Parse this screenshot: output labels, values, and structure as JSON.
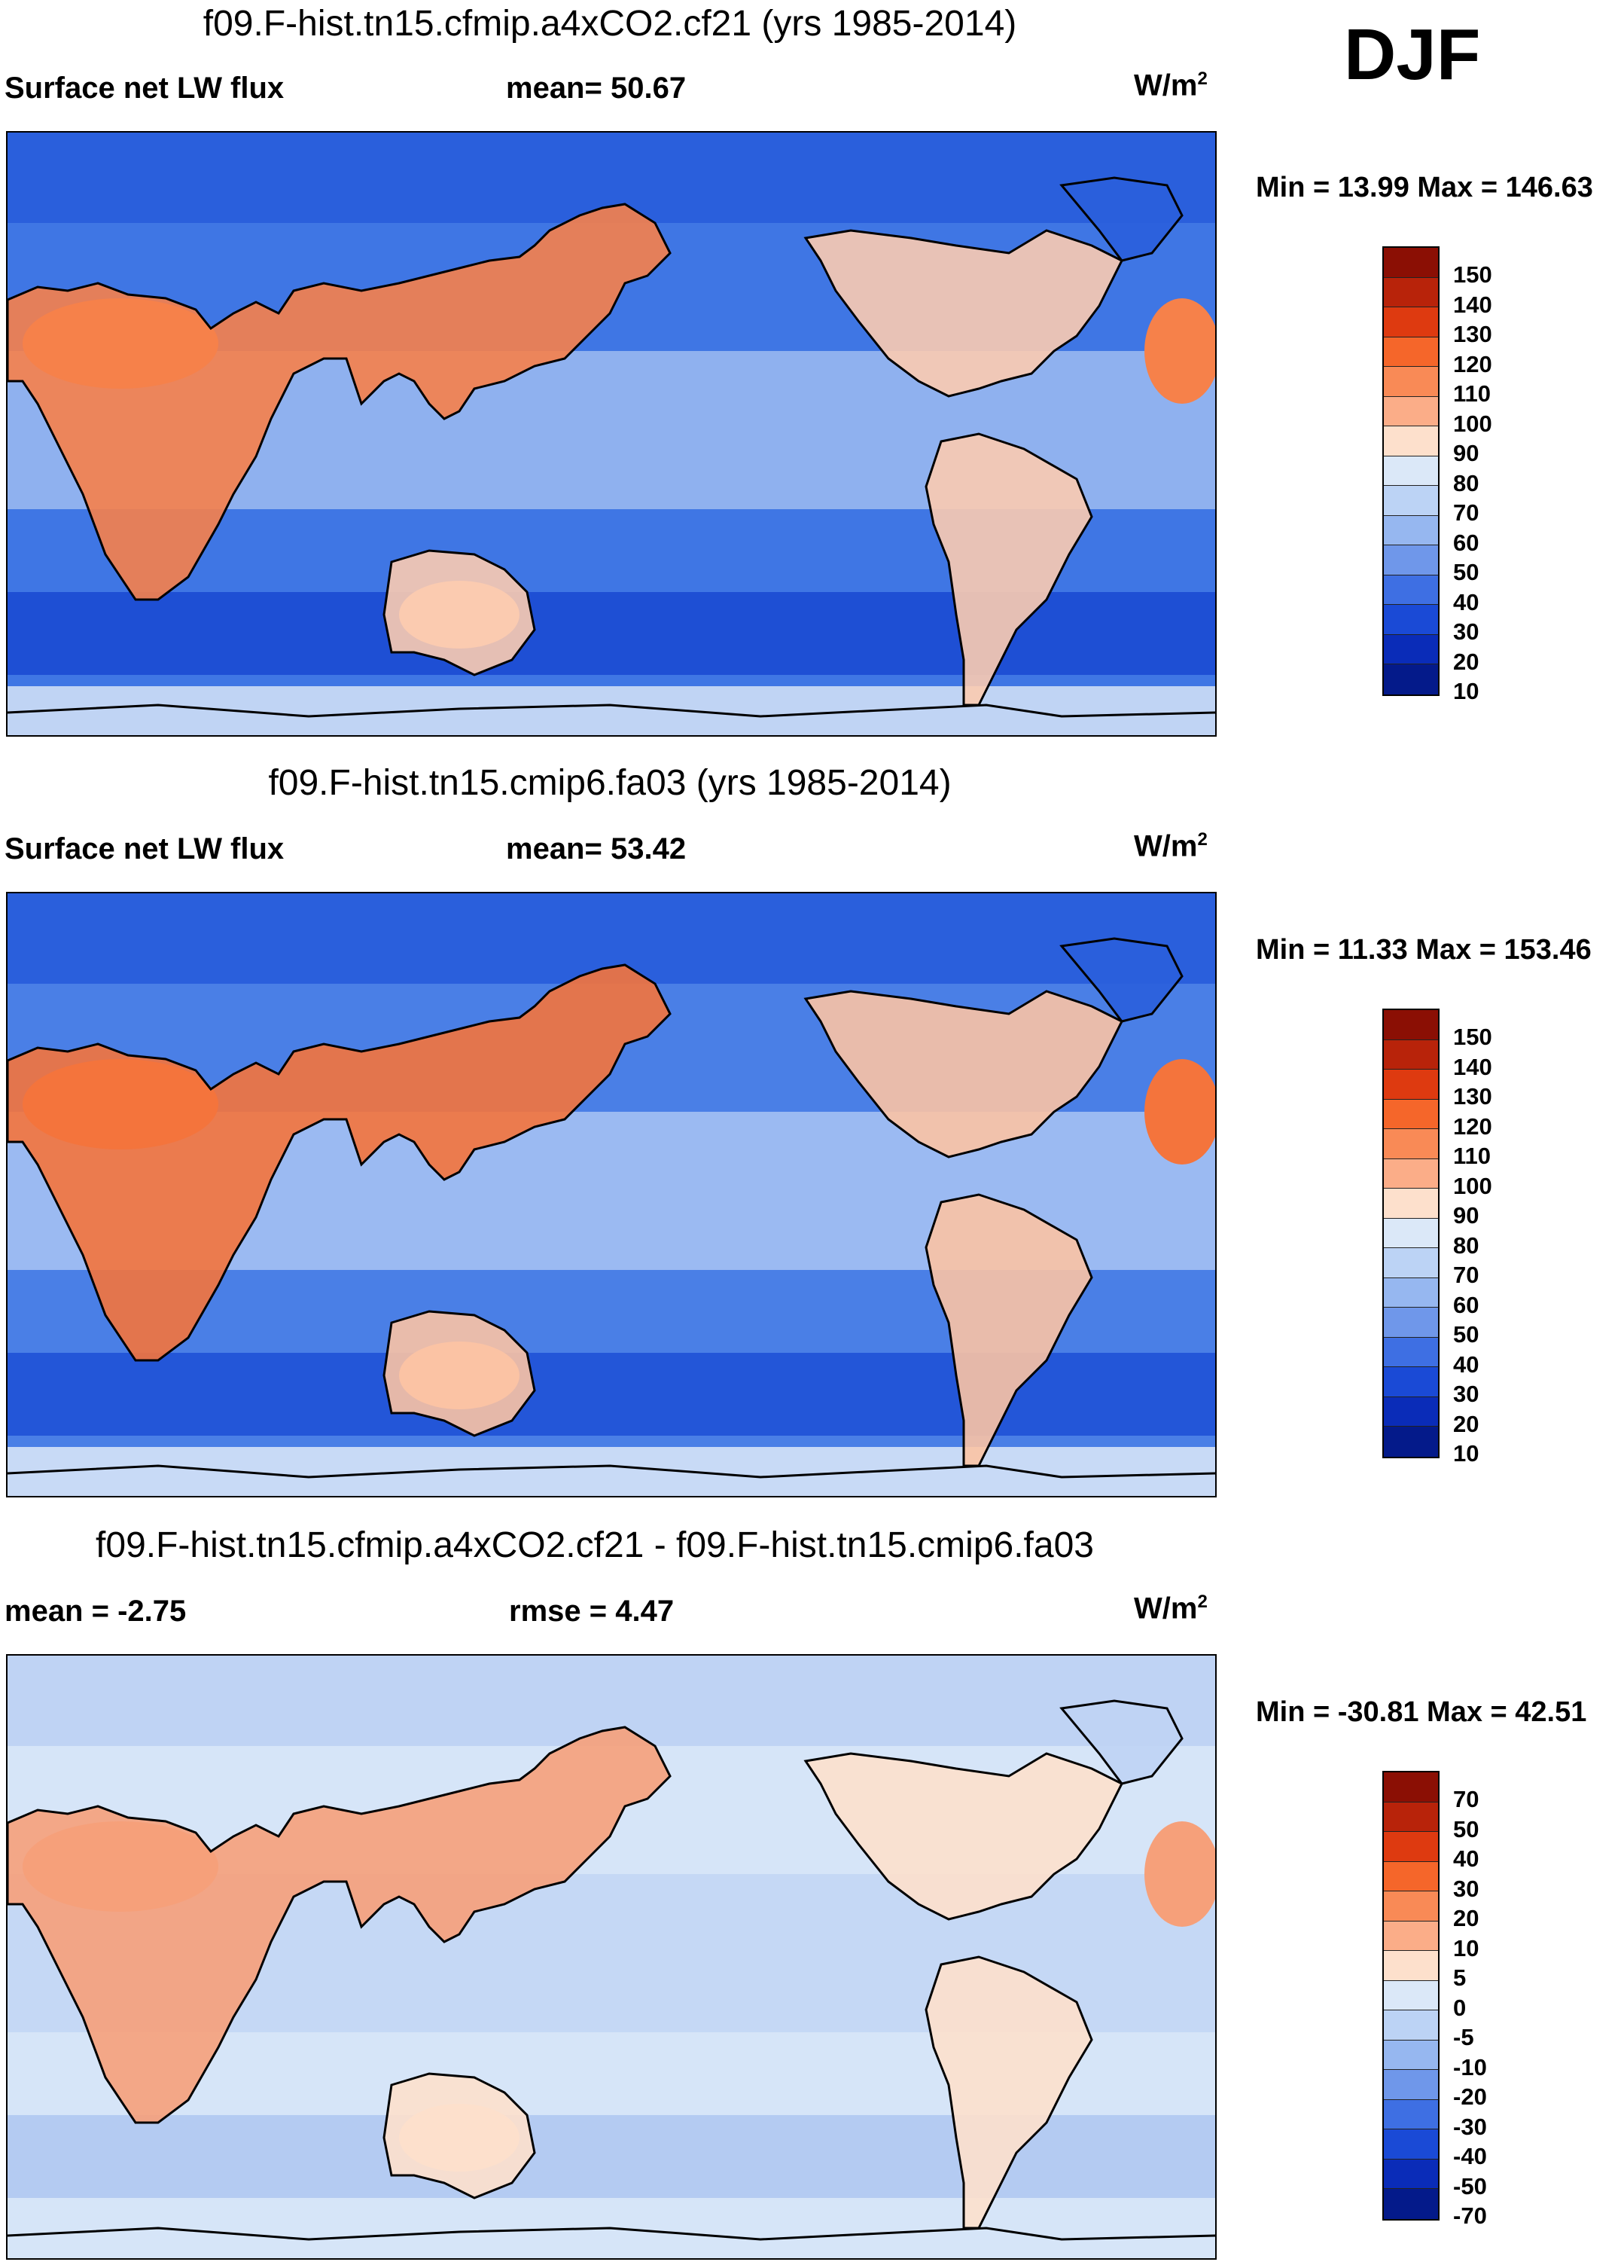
{
  "season": "DJF",
  "panels": [
    {
      "title": "f09.F-hist.tn15.cfmip.a4xCO2.cf21 (yrs 1985-2014)",
      "left_label": "Surface net LW flux",
      "center_label": "mean=  50.67",
      "units": "W/m",
      "units_sup": "2",
      "minmax": "Min =  13.99 Max = 146.63",
      "colorbar_labels": [
        "150",
        "140",
        "130",
        "120",
        "110",
        "100",
        "90",
        "80",
        "70",
        "60",
        "50",
        "40",
        "30",
        "20",
        "10"
      ],
      "colorbar_colors": [
        "#8b0f04",
        "#b8230a",
        "#de3a10",
        "#f5662a",
        "#f98a56",
        "#fbad88",
        "#fde0cc",
        "#dbe8f8",
        "#bcd3f5",
        "#96b7f0",
        "#6f97ea",
        "#3e6fe3",
        "#1a4ad6",
        "#0a2cb8",
        "#041a8a"
      ],
      "field_colors": {
        "ocean": "#3f76e4",
        "tropics": "#9dbcf1",
        "land_hot": "#f6814a",
        "land_warm": "#fbcbb0",
        "high_lat": "#2a5fdc",
        "polar": "#c0d4f4",
        "south_band": "#1e4fd4"
      }
    },
    {
      "title": "f09.F-hist.tn15.cmip6.fa03 (yrs 1985-2014)",
      "left_label": "Surface net LW flux",
      "center_label": "mean=  53.42",
      "units": "W/m",
      "units_sup": "2",
      "minmax": "Min =  11.33 Max = 153.46",
      "colorbar_labels": [
        "150",
        "140",
        "130",
        "120",
        "110",
        "100",
        "90",
        "80",
        "70",
        "60",
        "50",
        "40",
        "30",
        "20",
        "10"
      ],
      "colorbar_colors": [
        "#8b0f04",
        "#b8230a",
        "#de3a10",
        "#f5662a",
        "#f98a56",
        "#fbad88",
        "#fde0cc",
        "#dbe8f8",
        "#bcd3f5",
        "#96b7f0",
        "#6f97ea",
        "#3e6fe3",
        "#1a4ad6",
        "#0a2cb8",
        "#041a8a"
      ],
      "field_colors": {
        "ocean": "#4a7fe6",
        "tropics": "#a9c4f3",
        "land_hot": "#f4743c",
        "land_warm": "#fbc3a4",
        "high_lat": "#2a5fdc",
        "polar": "#c8daf6",
        "south_band": "#2356d8"
      }
    },
    {
      "title": "f09.F-hist.tn15.cfmip.a4xCO2.cf21 - f09.F-hist.tn15.cmip6.fa03",
      "left_label": "mean =  -2.75",
      "center_label": "rmse =    4.47",
      "units": "W/m",
      "units_sup": "2",
      "minmax": "Min = -30.81 Max =  42.51",
      "colorbar_labels": [
        "70",
        "50",
        "40",
        "30",
        "20",
        "10",
        "5",
        "0",
        "-5",
        "-10",
        "-20",
        "-30",
        "-40",
        "-50",
        "-70"
      ],
      "colorbar_colors": [
        "#8b0f04",
        "#b8230a",
        "#de3a10",
        "#f5662a",
        "#f98a56",
        "#fbad88",
        "#fde0cc",
        "#dbe8f8",
        "#bcd3f5",
        "#96b7f0",
        "#6f97ea",
        "#3e6fe3",
        "#1a4ad6",
        "#0a2cb8",
        "#041a8a"
      ],
      "field_colors": {
        "ocean": "#d6e5f8",
        "tropics": "#c2d6f5",
        "land_hot": "#f6a07a",
        "land_warm": "#fde0cc",
        "high_lat": "#bfd3f4",
        "polar": "#d6e5f8",
        "south_band": "#b4cbf2"
      }
    }
  ]
}
